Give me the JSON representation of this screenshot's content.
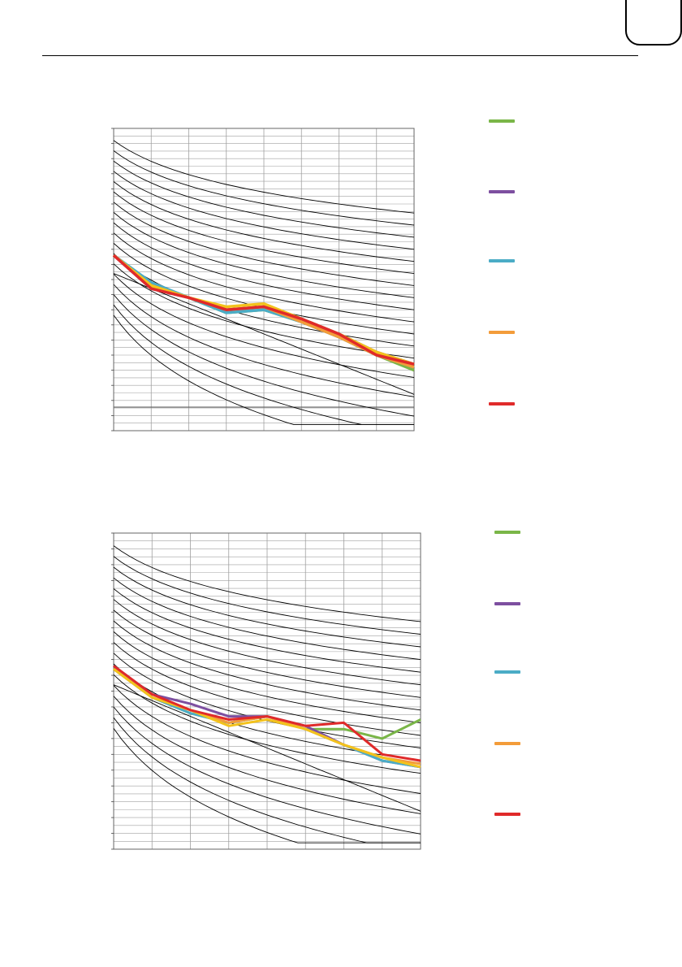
{
  "colors": {
    "green": "#7ab648",
    "purple": "#7d4fa0",
    "blue": "#4bacc6",
    "orange": "#f39c3a",
    "yellow": "#f3c21c",
    "red": "#e02a2a",
    "grid": "#a0a0a0",
    "curves": "#000000"
  },
  "chart_data": [
    {
      "type": "line",
      "xlabel": "",
      "ylabel": "",
      "grid": true,
      "legend": "right",
      "x": [
        0,
        1,
        2,
        3,
        4,
        5,
        6,
        7,
        8
      ],
      "xlim": [
        0,
        8
      ],
      "ylim": [
        0,
        100
      ],
      "series": [
        {
          "color": "green",
          "values": [
            58,
            48,
            44,
            39,
            40,
            36,
            31,
            25,
            20
          ]
        },
        {
          "color": "purple",
          "values": [
            58,
            47,
            44,
            40,
            41,
            37,
            32,
            26,
            22
          ]
        },
        {
          "color": "blue",
          "values": [
            58,
            49,
            44,
            39,
            40,
            36,
            31,
            25,
            21
          ]
        },
        {
          "color": "orange",
          "values": [
            58,
            48,
            44,
            40,
            41,
            36,
            31,
            25,
            21
          ]
        },
        {
          "color": "yellow",
          "values": [
            58,
            48,
            44,
            41,
            42,
            37,
            32,
            26,
            22
          ]
        },
        {
          "color": "red",
          "values": [
            58,
            47,
            44,
            40,
            41,
            37,
            32,
            25,
            22
          ]
        }
      ],
      "legend_entries": [
        "green",
        "purple",
        "blue",
        "orange",
        "red"
      ]
    },
    {
      "type": "line",
      "xlabel": "",
      "ylabel": "",
      "grid": true,
      "legend": "right",
      "x": [
        0,
        1,
        2,
        3,
        4,
        5,
        6,
        7,
        8
      ],
      "xlim": [
        0,
        8
      ],
      "ylim": [
        0,
        100
      ],
      "series": [
        {
          "color": "green",
          "values": [
            57,
            48,
            43,
            40,
            42,
            38,
            38,
            35,
            41
          ]
        },
        {
          "color": "purple",
          "values": [
            58,
            49,
            46,
            42,
            42,
            39,
            33,
            28,
            26
          ]
        },
        {
          "color": "blue",
          "values": [
            57,
            48,
            43,
            40,
            42,
            38,
            33,
            28,
            26
          ]
        },
        {
          "color": "orange",
          "values": [
            57,
            48,
            44,
            40,
            42,
            38,
            33,
            29,
            27
          ]
        },
        {
          "color": "yellow",
          "values": [
            57,
            48,
            44,
            39,
            41,
            38,
            33,
            29,
            26
          ]
        },
        {
          "color": "red",
          "values": [
            58,
            49,
            44,
            41,
            42,
            39,
            40,
            30,
            28
          ]
        }
      ],
      "legend_entries": [
        "green",
        "purple",
        "blue",
        "orange",
        "red"
      ]
    }
  ]
}
